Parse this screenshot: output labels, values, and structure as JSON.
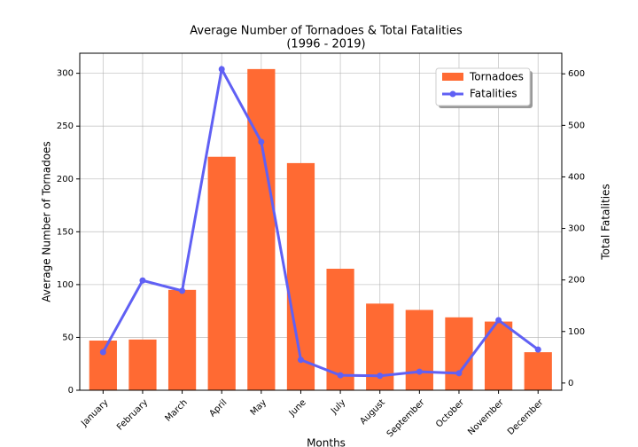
{
  "chart_data": {
    "type": "bar",
    "title": "Average Number of Tornadoes & Total Fatalities",
    "subtitle": "(1996 - 2019)",
    "x_label": "Months",
    "y_label": "Average Number of Tornadoes",
    "y2_label": "Total Fatalities",
    "categories": [
      "January",
      "February",
      "March",
      "April",
      "May",
      "June",
      "July",
      "August",
      "September",
      "October",
      "November",
      "December"
    ],
    "series": [
      {
        "name": "Tornadoes",
        "type": "bar",
        "color": "#ff6a33",
        "values": [
          47,
          48,
          95,
          221,
          304,
          215,
          115,
          82,
          76,
          69,
          65,
          36
        ]
      },
      {
        "name": "Fatalities",
        "type": "line",
        "axis": "y2",
        "color": "#6060f4",
        "values": [
          60,
          199,
          179,
          609,
          468,
          45,
          15,
          14,
          22,
          19,
          122,
          65
        ]
      }
    ],
    "ylim": [
      0,
      319
    ],
    "yticks": [
      0,
      50,
      100,
      150,
      200,
      250,
      300
    ],
    "y2lim": [
      -14,
      640
    ],
    "y2ticks": [
      0,
      100,
      200,
      300,
      400,
      500,
      600
    ],
    "y_color": "#e00000",
    "y2_color": "#0000dd",
    "grid": true,
    "legend": "upper-right"
  }
}
